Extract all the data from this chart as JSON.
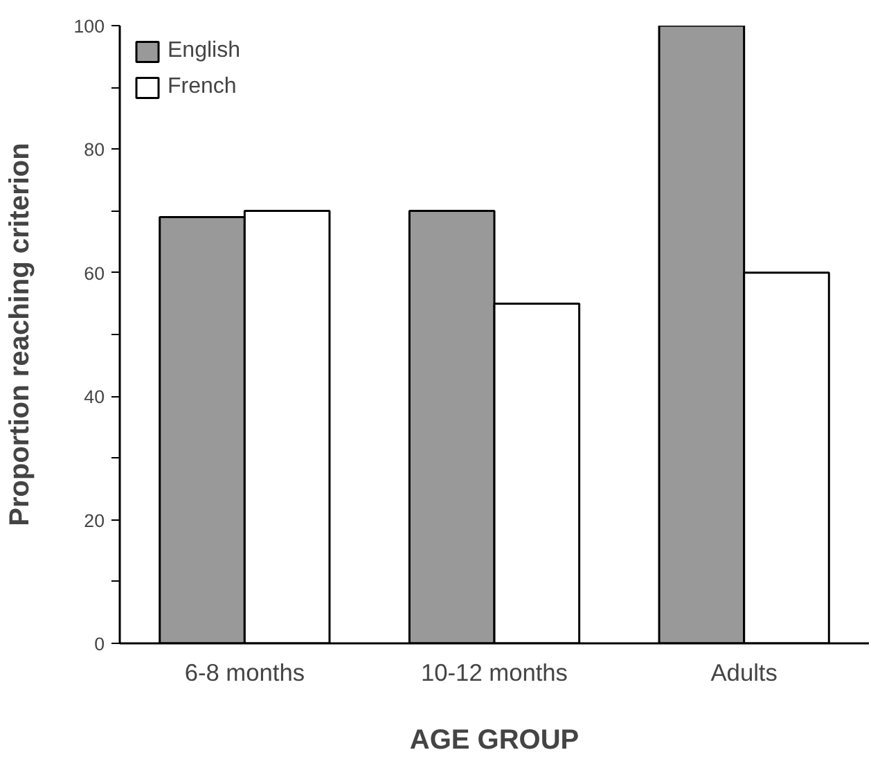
{
  "chart_data": {
    "type": "bar",
    "xlabel": "AGE GROUP",
    "ylabel": "Proportion reaching criterion",
    "categories": [
      "6-8 months",
      "10-12 months",
      "Adults"
    ],
    "series": [
      {
        "name": "English",
        "color": "#999999",
        "values": [
          69,
          70,
          100
        ]
      },
      {
        "name": "French",
        "color": "#ffffff",
        "values": [
          70,
          55,
          60
        ]
      }
    ],
    "ylim": [
      0,
      100
    ],
    "yticks": [
      0,
      {
        "value": 10,
        "label": null
      },
      20,
      {
        "value": 30,
        "label": null
      },
      40,
      {
        "value": 50,
        "label": null
      },
      60,
      {
        "value": 70,
        "label": null
      },
      80,
      {
        "value": 90,
        "label": null
      },
      100
    ],
    "grid": false,
    "legend": "top left"
  }
}
